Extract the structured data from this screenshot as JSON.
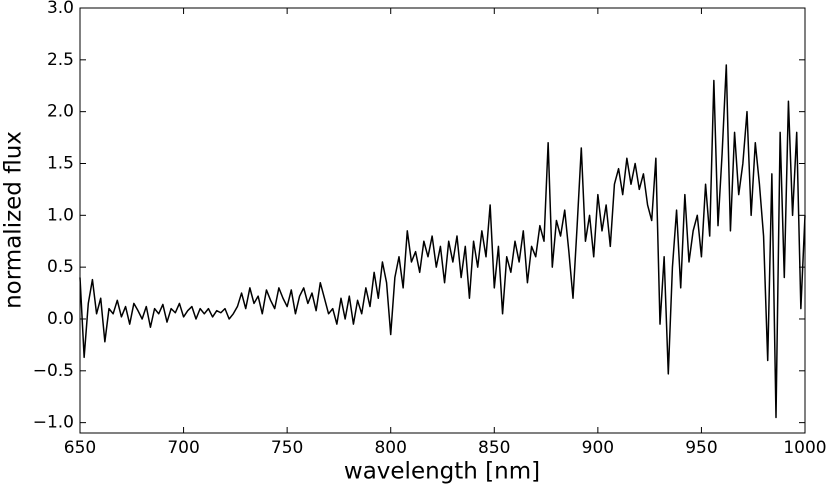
{
  "chart_data": {
    "type": "line",
    "xlabel": "wavelength [nm]",
    "ylabel": "normalized flux",
    "color": "#000000",
    "xlim": [
      650,
      1000
    ],
    "xticks": [
      650,
      700,
      750,
      800,
      850,
      900,
      950,
      1000
    ],
    "ylim": [
      -1.1,
      3.0
    ],
    "yticks": [
      {
        "value": -1,
        "label": "−1.0"
      },
      {
        "value": -0.5,
        "label": "−0.5"
      },
      {
        "value": 0,
        "label": "0.0"
      },
      0.5,
      {
        "value": 1,
        "label": "1.0"
      },
      1.5,
      {
        "value": 2,
        "label": "2.0"
      },
      2.5,
      {
        "value": 3,
        "label": "3.0"
      }
    ],
    "x": [
      650,
      652,
      654,
      656,
      658,
      660,
      662,
      664,
      666,
      668,
      670,
      672,
      674,
      676,
      678,
      680,
      682,
      684,
      686,
      688,
      690,
      692,
      694,
      696,
      698,
      700,
      702,
      704,
      706,
      708,
      710,
      712,
      714,
      716,
      718,
      720,
      722,
      724,
      726,
      728,
      730,
      732,
      734,
      736,
      738,
      740,
      742,
      744,
      746,
      748,
      750,
      752,
      754,
      756,
      758,
      760,
      762,
      764,
      766,
      768,
      770,
      772,
      774,
      776,
      778,
      780,
      782,
      784,
      786,
      788,
      790,
      792,
      794,
      796,
      798,
      800,
      802,
      804,
      806,
      808,
      810,
      812,
      814,
      816,
      818,
      820,
      822,
      824,
      826,
      828,
      830,
      832,
      834,
      836,
      838,
      840,
      842,
      844,
      846,
      848,
      850,
      852,
      854,
      856,
      858,
      860,
      862,
      864,
      866,
      868,
      870,
      872,
      874,
      876,
      878,
      880,
      882,
      884,
      886,
      888,
      890,
      892,
      894,
      896,
      898,
      900,
      902,
      904,
      906,
      908,
      910,
      912,
      914,
      916,
      918,
      920,
      922,
      924,
      926,
      928,
      930,
      932,
      934,
      936,
      938,
      940,
      942,
      944,
      946,
      948,
      950,
      952,
      954,
      956,
      958,
      960,
      962,
      964,
      966,
      968,
      970,
      972,
      974,
      976,
      978,
      980,
      982,
      984,
      986,
      988,
      990,
      992,
      994,
      996,
      998,
      1000
    ],
    "values": [
      0.4,
      -0.37,
      0.15,
      0.38,
      0.05,
      0.2,
      -0.22,
      0.1,
      0.05,
      0.18,
      0.02,
      0.12,
      -0.05,
      0.15,
      0.08,
      0.0,
      0.12,
      -0.08,
      0.1,
      0.05,
      0.14,
      -0.03,
      0.1,
      0.06,
      0.15,
      0.02,
      0.08,
      0.12,
      0.0,
      0.1,
      0.05,
      0.1,
      0.02,
      0.08,
      0.06,
      0.1,
      0.0,
      0.05,
      0.12,
      0.25,
      0.1,
      0.3,
      0.15,
      0.22,
      0.05,
      0.28,
      0.18,
      0.1,
      0.3,
      0.2,
      0.12,
      0.28,
      0.05,
      0.22,
      0.3,
      0.15,
      0.25,
      0.08,
      0.35,
      0.2,
      0.05,
      0.1,
      -0.05,
      0.2,
      0.0,
      0.22,
      -0.05,
      0.18,
      0.05,
      0.3,
      0.12,
      0.45,
      0.2,
      0.55,
      0.35,
      -0.15,
      0.4,
      0.6,
      0.3,
      0.85,
      0.55,
      0.65,
      0.45,
      0.75,
      0.6,
      0.8,
      0.5,
      0.7,
      0.35,
      0.75,
      0.55,
      0.8,
      0.4,
      0.7,
      0.2,
      0.75,
      0.5,
      0.85,
      0.6,
      1.1,
      0.3,
      0.7,
      0.05,
      0.6,
      0.45,
      0.75,
      0.55,
      0.85,
      0.35,
      0.7,
      0.6,
      0.9,
      0.75,
      1.7,
      0.5,
      0.95,
      0.8,
      1.05,
      0.65,
      0.2,
      0.9,
      1.65,
      0.75,
      1.0,
      0.6,
      1.2,
      0.85,
      1.1,
      0.7,
      1.3,
      1.45,
      1.2,
      1.55,
      1.3,
      1.5,
      1.25,
      1.4,
      1.1,
      0.95,
      1.55,
      -0.05,
      0.6,
      -0.53,
      0.5,
      1.05,
      0.3,
      1.2,
      0.55,
      0.85,
      1.0,
      0.6,
      1.3,
      0.8,
      2.3,
      0.9,
      1.6,
      2.45,
      0.85,
      1.8,
      1.2,
      1.5,
      2.0,
      1.0,
      1.7,
      1.3,
      0.8,
      -0.4,
      1.4,
      -0.95,
      1.8,
      0.4,
      2.1,
      1.0,
      1.8,
      0.1,
      1.0
    ]
  }
}
